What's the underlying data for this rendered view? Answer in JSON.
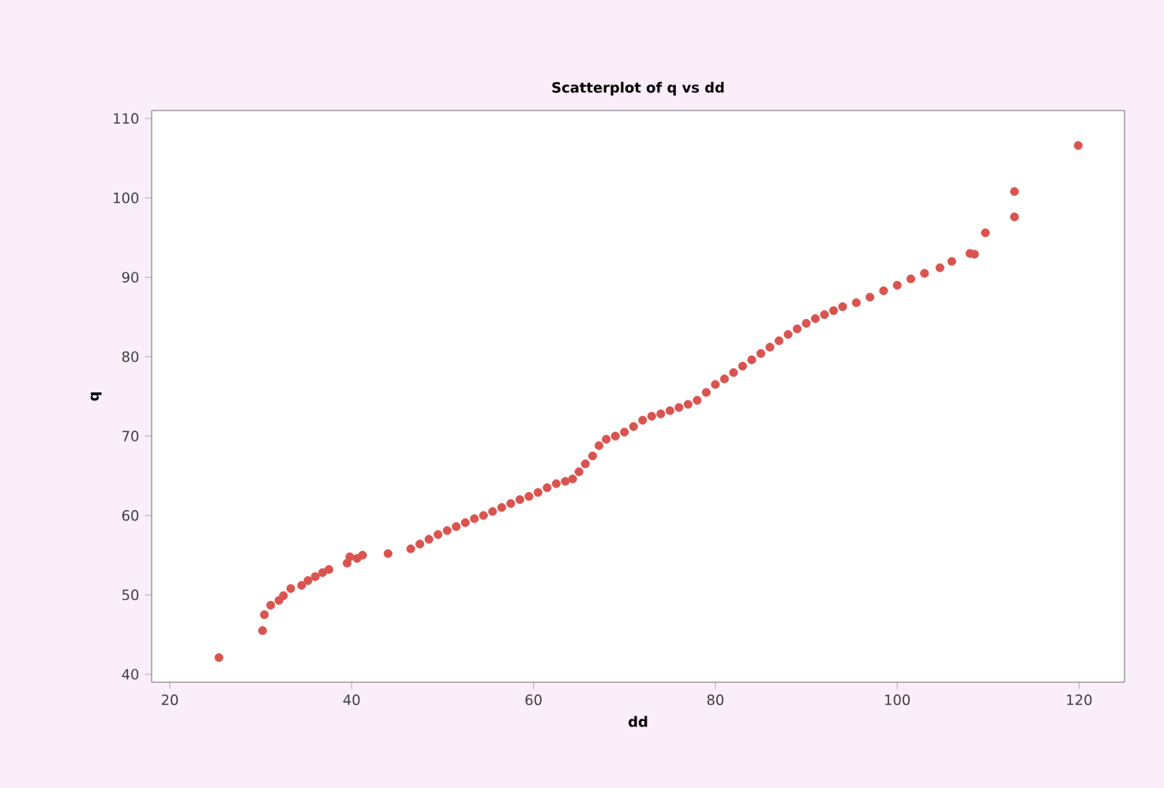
{
  "chart_data": {
    "type": "scatter",
    "title": "Scatterplot of q vs dd",
    "xlabel": "dd",
    "ylabel": "q",
    "xlim": [
      18,
      125
    ],
    "ylim": [
      39,
      111
    ],
    "xticks": [
      20,
      40,
      60,
      80,
      100,
      120
    ],
    "yticks": [
      40,
      50,
      60,
      70,
      80,
      90,
      100,
      110
    ],
    "marker": "circle",
    "grid": false,
    "series": [
      {
        "color": "#d9534f",
        "x": [
          25.4,
          30.2,
          30.4,
          31.1,
          32.0,
          32.5,
          33.3,
          34.5,
          35.2,
          36.0,
          36.8,
          37.5,
          39.5,
          39.8,
          40.6,
          41.2,
          44.0,
          46.5,
          47.5,
          48.5,
          49.5,
          50.5,
          51.5,
          52.5,
          53.5,
          54.5,
          55.5,
          56.5,
          57.5,
          58.5,
          59.5,
          60.5,
          61.5,
          62.5,
          63.5,
          64.3,
          65.0,
          65.7,
          66.5,
          67.2,
          68.0,
          69.0,
          70.0,
          71.0,
          72.0,
          73.0,
          74.0,
          75.0,
          76.0,
          77.0,
          78.0,
          79.0,
          80.0,
          81.0,
          82.0,
          83.0,
          84.0,
          85.0,
          86.0,
          87.0,
          88.0,
          89.0,
          90.0,
          91.0,
          92.0,
          93.0,
          94.0,
          95.5,
          97.0,
          98.5,
          100.0,
          101.5,
          103.0,
          104.7,
          106.0,
          108.0,
          108.5,
          109.7,
          112.9,
          112.9,
          119.9
        ],
        "values": [
          42.1,
          45.5,
          47.5,
          48.7,
          49.3,
          49.9,
          50.8,
          51.2,
          51.8,
          52.3,
          52.8,
          53.2,
          54.0,
          54.8,
          54.6,
          55.0,
          55.2,
          55.8,
          56.4,
          57.0,
          57.6,
          58.1,
          58.6,
          59.1,
          59.6,
          60.0,
          60.5,
          61.0,
          61.5,
          62.0,
          62.4,
          62.9,
          63.5,
          64.0,
          64.3,
          64.6,
          65.5,
          66.5,
          67.5,
          68.8,
          69.6,
          70.0,
          70.5,
          71.2,
          72.0,
          72.5,
          72.8,
          73.2,
          73.6,
          74.0,
          74.5,
          75.5,
          76.5,
          77.2,
          78.0,
          78.8,
          79.6,
          80.4,
          81.2,
          82.0,
          82.8,
          83.5,
          84.2,
          84.8,
          85.3,
          85.8,
          86.3,
          86.8,
          87.5,
          88.3,
          89.0,
          89.8,
          90.5,
          91.2,
          92.0,
          93.0,
          92.9,
          95.6,
          97.6,
          100.8,
          106.6
        ]
      }
    ]
  }
}
